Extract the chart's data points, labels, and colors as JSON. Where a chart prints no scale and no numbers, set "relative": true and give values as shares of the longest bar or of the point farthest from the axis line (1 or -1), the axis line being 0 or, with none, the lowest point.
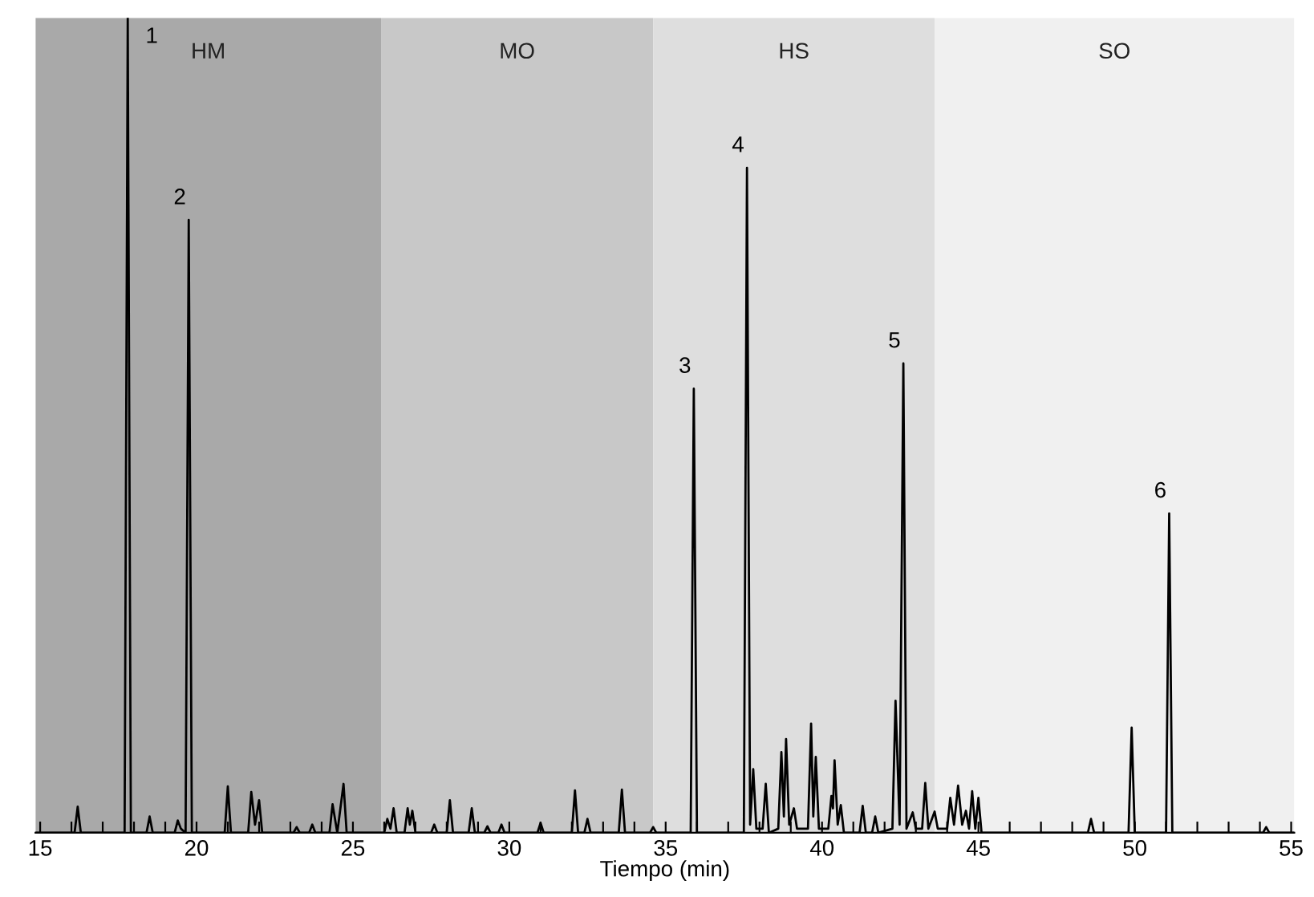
{
  "chart_data": {
    "type": "line",
    "relative": true,
    "xlabel": "Tiempo (min)",
    "tick_labels": "x",
    "marker": "none",
    "line_style": "solid",
    "xlim": [
      14.85,
      55.1
    ],
    "xticks": [
      15,
      {
        "value": 16,
        "label": null
      },
      {
        "value": 17,
        "label": null
      },
      {
        "value": 18,
        "label": null
      },
      {
        "value": 19,
        "label": null
      },
      20,
      {
        "value": 21,
        "label": null
      },
      {
        "value": 22,
        "label": null
      },
      {
        "value": 23,
        "label": null
      },
      {
        "value": 24,
        "label": null
      },
      25,
      {
        "value": 26,
        "label": null
      },
      {
        "value": 27,
        "label": null
      },
      {
        "value": 28,
        "label": null
      },
      {
        "value": 29,
        "label": null
      },
      30,
      {
        "value": 31,
        "label": null
      },
      {
        "value": 32,
        "label": null
      },
      {
        "value": 33,
        "label": null
      },
      {
        "value": 34,
        "label": null
      },
      35,
      {
        "value": 36,
        "label": null
      },
      {
        "value": 37,
        "label": null
      },
      {
        "value": 38,
        "label": null
      },
      {
        "value": 39,
        "label": null
      },
      40,
      {
        "value": 41,
        "label": null
      },
      {
        "value": 42,
        "label": null
      },
      {
        "value": 43,
        "label": null
      },
      {
        "value": 44,
        "label": null
      },
      45,
      {
        "value": 46,
        "label": null
      },
      {
        "value": 47,
        "label": null
      },
      {
        "value": 48,
        "label": null
      },
      {
        "value": 49,
        "label": null
      },
      50,
      {
        "value": 51,
        "label": null
      },
      {
        "value": 52,
        "label": null
      },
      {
        "value": 53,
        "label": null
      },
      {
        "value": 54,
        "label": null
      },
      55
    ],
    "bands": [
      {
        "axis": "x",
        "from": 14.85,
        "to": 25.9,
        "label": "HM",
        "color": "#a9a9a9"
      },
      {
        "axis": "x",
        "from": 25.9,
        "to": 34.6,
        "label": "MO",
        "color": "#c8c8c8"
      },
      {
        "axis": "x",
        "from": 34.6,
        "to": 43.6,
        "label": "HS",
        "color": "#dedede"
      },
      {
        "axis": "x",
        "from": 43.6,
        "to": 55.1,
        "label": "SO",
        "color": "#f0f0f0"
      }
    ],
    "series": [
      {
        "color": "#000000",
        "x": [
          14.85,
          16.1,
          16.2,
          16.3,
          17.7,
          17.8,
          17.9,
          18.4,
          18.5,
          18.6,
          19.3,
          19.4,
          19.5,
          19.65,
          19.75,
          19.85,
          20.9,
          21.0,
          21.1,
          21.65,
          21.75,
          21.87,
          22.0,
          22.1,
          23.1,
          23.2,
          23.3,
          23.6,
          23.7,
          23.8,
          24.25,
          24.35,
          24.5,
          24.7,
          24.8,
          26.0,
          26.1,
          26.2,
          26.3,
          26.4,
          26.65,
          26.75,
          26.82,
          26.9,
          27.0,
          27.5,
          27.6,
          27.7,
          28.0,
          28.1,
          28.2,
          28.7,
          28.8,
          28.9,
          29.2,
          29.3,
          29.4,
          29.65,
          29.75,
          29.85,
          30.9,
          31.0,
          31.1,
          32.0,
          32.1,
          32.2,
          32.4,
          32.5,
          32.6,
          33.5,
          33.6,
          33.7,
          34.5,
          34.6,
          34.7,
          35.8,
          35.9,
          36.0,
          37.5,
          37.6,
          37.7,
          37.8,
          37.9,
          38.1,
          38.2,
          38.3,
          38.6,
          38.7,
          38.78,
          38.85,
          38.95,
          39.1,
          39.2,
          39.55,
          39.65,
          39.72,
          39.8,
          39.9,
          40.2,
          40.3,
          40.35,
          40.4,
          40.5,
          40.6,
          40.7,
          41.2,
          41.3,
          41.4,
          41.6,
          41.7,
          41.8,
          42.25,
          42.35,
          42.48,
          42.6,
          42.7,
          42.9,
          43.0,
          43.2,
          43.3,
          43.4,
          43.6,
          43.7,
          44.0,
          44.1,
          44.22,
          44.35,
          44.48,
          44.6,
          44.7,
          44.8,
          44.9,
          45.0,
          45.1,
          48.5,
          48.6,
          48.7,
          49.8,
          49.9,
          50.0,
          51.0,
          51.1,
          51.2,
          54.1,
          54.2,
          54.3,
          55.1
        ],
        "values": [
          0,
          0,
          0.032,
          0,
          0,
          1.0,
          0,
          0,
          0.02,
          0,
          0,
          0.015,
          0.005,
          0,
          0.752,
          0,
          0,
          0.057,
          0,
          0,
          0.05,
          0.01,
          0.04,
          0,
          0,
          0.007,
          0,
          0,
          0.01,
          0,
          0,
          0.035,
          0,
          0.06,
          0,
          0,
          0.017,
          0.005,
          0.03,
          0,
          0,
          0.03,
          0.01,
          0.027,
          0,
          0,
          0.01,
          0,
          0,
          0.04,
          0,
          0,
          0.03,
          0,
          0,
          0.008,
          0,
          0,
          0.01,
          0,
          0,
          0.012,
          0,
          0,
          0.052,
          0,
          0,
          0.017,
          0,
          0,
          0.053,
          0,
          0,
          0.007,
          0,
          0,
          0.545,
          0,
          0,
          0.816,
          0.01,
          0.078,
          0.005,
          0.005,
          0.06,
          0,
          0.005,
          0.099,
          0.02,
          0.115,
          0.01,
          0.03,
          0.005,
          0.005,
          0.134,
          0.02,
          0.093,
          0.005,
          0.005,
          0.045,
          0.03,
          0.089,
          0.01,
          0.034,
          0,
          0,
          0.033,
          0,
          0,
          0.02,
          0,
          0.005,
          0.162,
          0.01,
          0.576,
          0.005,
          0.025,
          0.005,
          0.005,
          0.061,
          0.005,
          0.026,
          0.005,
          0.005,
          0.043,
          0.01,
          0.058,
          0.01,
          0.027,
          0.005,
          0.051,
          0.005,
          0.043,
          0,
          0,
          0.017,
          0,
          0,
          0.129,
          0,
          0,
          0.392,
          0,
          0,
          0.007,
          0,
          0
        ]
      }
    ],
    "annotations": [
      {
        "text": "1",
        "x": 17.8,
        "y": 1.0
      },
      {
        "text": "2",
        "x": 19.75,
        "y": 0.752
      },
      {
        "text": "3",
        "x": 35.9,
        "y": 0.545
      },
      {
        "text": "4",
        "x": 37.6,
        "y": 0.816
      },
      {
        "text": "5",
        "x": 42.6,
        "y": 0.576
      },
      {
        "text": "6",
        "x": 51.1,
        "y": 0.392
      }
    ]
  }
}
